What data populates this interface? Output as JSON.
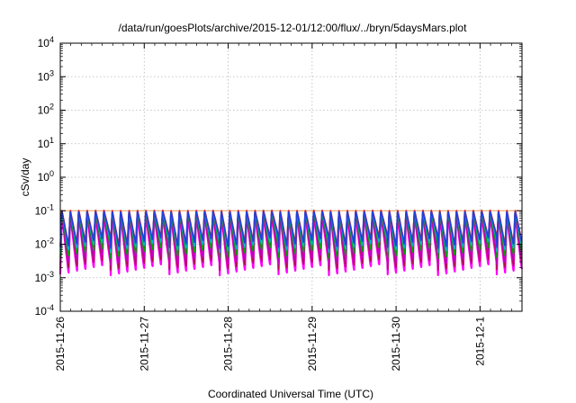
{
  "chart_data": {
    "type": "line",
    "title": "/data/run/goesPlots/archive/2015-12-01/12:00/flux/../bryn/5daysMars.plot",
    "xlabel": "Coordinated Universal Time (UTC)",
    "ylabel": "cSv/day",
    "x_range": [
      "2015-11-26T00:00",
      "2015-12-01T12:00"
    ],
    "x_ticks": [
      "2015-11-26",
      "2015-11-27",
      "2015-11-28",
      "2015-11-29",
      "2015-11-30",
      "2015-12-1"
    ],
    "y_scale": "log",
    "ylim": [
      0.0001,
      10000
    ],
    "y_ticks": [
      {
        "base": "10",
        "exp": "-4"
      },
      {
        "base": "10",
        "exp": "-3"
      },
      {
        "base": "10",
        "exp": "-2"
      },
      {
        "base": "10",
        "exp": "-1"
      },
      {
        "base": "10",
        "exp": "0"
      },
      {
        "base": "10",
        "exp": "1"
      },
      {
        "base": "10",
        "exp": "2"
      },
      {
        "base": "10",
        "exp": "3"
      },
      {
        "base": "10",
        "exp": "4"
      }
    ],
    "grid": true,
    "reference_line": {
      "y": 0.1,
      "color": "#e8a060"
    },
    "series": [
      {
        "color": "#ff00ff",
        "peak": 0.08,
        "trough": 0.0025
      },
      {
        "color": "#b01050",
        "peak": 0.085,
        "trough": 0.0035
      },
      {
        "color": "#c000c0",
        "peak": 0.09,
        "trough": 0.005
      },
      {
        "color": "#00a000",
        "peak": 0.095,
        "trough": 0.008
      },
      {
        "color": "#00b8c0",
        "peak": 0.1,
        "trough": 0.012
      },
      {
        "color": "#e02020",
        "peak": 0.11,
        "trough": 0.018
      },
      {
        "color": "#2040e0",
        "peak": 0.1,
        "trough": 0.016
      }
    ]
  }
}
